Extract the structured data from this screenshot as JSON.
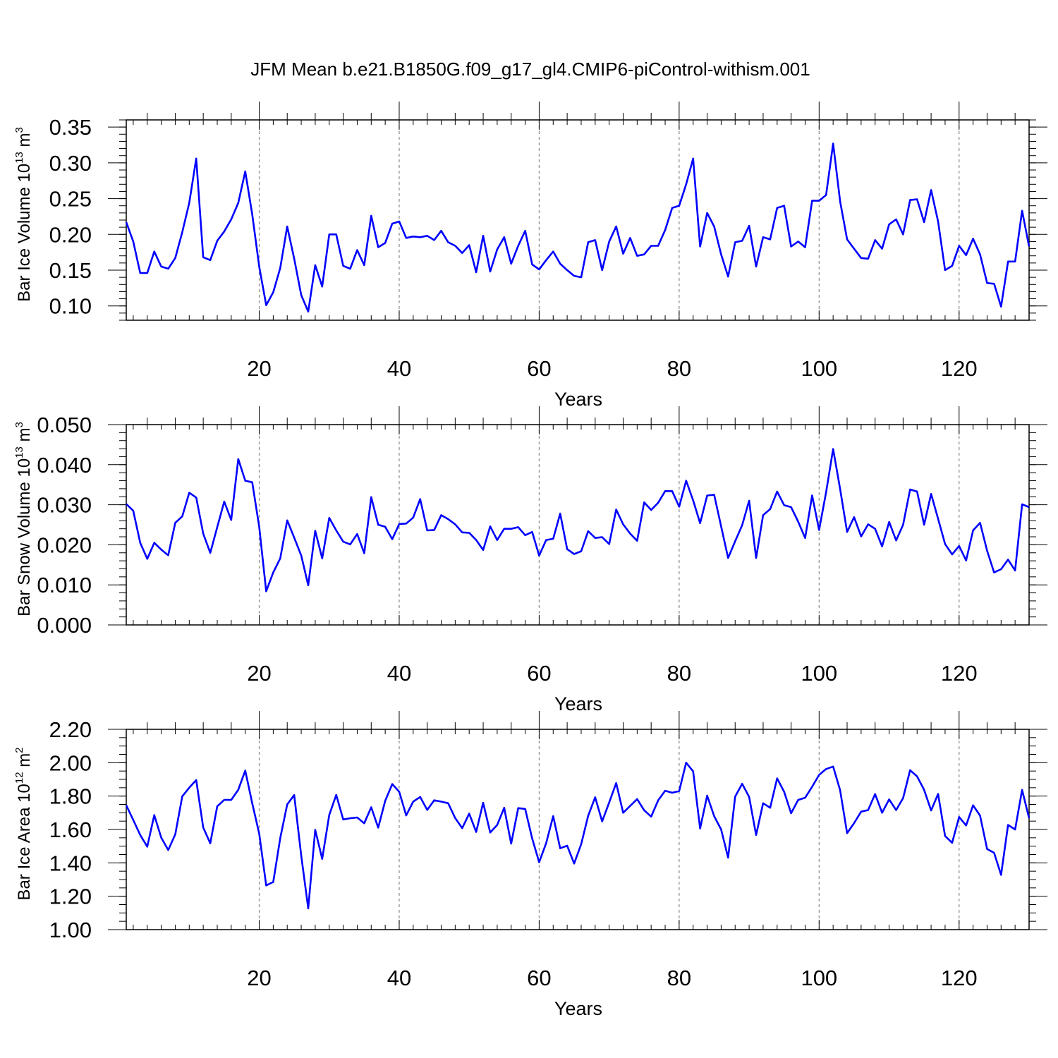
{
  "title": "JFM Mean b.e21.B1850G.f09_g17_gl4.CMIP6-piControl-withism.001",
  "line_color": "#0000ff",
  "chart_data": [
    {
      "type": "line",
      "xlabel": "Years",
      "ylabel": {
        "main": "Bar Ice Volume 10",
        "exp": "13",
        "unit": " m",
        "unit_exp": "3"
      },
      "xlim": [
        1,
        130
      ],
      "ylim": [
        0.08,
        0.36
      ],
      "x_ticks": [
        20,
        40,
        60,
        80,
        100,
        120
      ],
      "x_tick_labels": [
        "20",
        "40",
        "60",
        "80",
        "100",
        "120"
      ],
      "y_ticks": [
        0.1,
        0.15,
        0.2,
        0.25,
        0.3,
        0.35
      ],
      "y_tick_labels": [
        "0.10",
        "0.15",
        "0.20",
        "0.25",
        "0.30",
        "0.35"
      ],
      "y_minor_step": 0.01,
      "x_grid": "dashed vertical lines at major x ticks",
      "values": [
        0.217,
        0.19,
        0.146,
        0.146,
        0.176,
        0.155,
        0.152,
        0.167,
        0.203,
        0.244,
        0.306,
        0.168,
        0.164,
        0.191,
        0.204,
        0.221,
        0.244,
        0.288,
        0.228,
        0.155,
        0.101,
        0.119,
        0.153,
        0.211,
        0.166,
        0.115,
        0.092,
        0.157,
        0.127,
        0.2,
        0.2,
        0.156,
        0.152,
        0.178,
        0.157,
        0.226,
        0.182,
        0.188,
        0.215,
        0.218,
        0.195,
        0.197,
        0.196,
        0.198,
        0.192,
        0.205,
        0.189,
        0.184,
        0.174,
        0.185,
        0.147,
        0.198,
        0.148,
        0.179,
        0.196,
        0.159,
        0.184,
        0.205,
        0.158,
        0.151,
        0.164,
        0.176,
        0.159,
        0.15,
        0.142,
        0.14,
        0.189,
        0.192,
        0.15,
        0.19,
        0.211,
        0.173,
        0.195,
        0.17,
        0.172,
        0.184,
        0.184,
        0.206,
        0.237,
        0.24,
        0.27,
        0.306,
        0.183,
        0.23,
        0.211,
        0.172,
        0.141,
        0.189,
        0.191,
        0.212,
        0.155,
        0.196,
        0.193,
        0.237,
        0.24,
        0.183,
        0.19,
        0.182,
        0.247,
        0.247,
        0.255,
        0.327,
        0.246,
        0.193,
        0.18,
        0.167,
        0.166,
        0.192,
        0.18,
        0.214,
        0.221,
        0.2,
        0.248,
        0.249,
        0.217,
        0.262,
        0.218,
        0.15,
        0.156,
        0.184,
        0.171,
        0.194,
        0.172,
        0.132,
        0.131,
        0.099,
        0.162,
        0.162,
        0.233,
        0.183
      ]
    },
    {
      "type": "line",
      "xlabel": "Years",
      "ylabel": {
        "main": "Bar Snow Volume 10",
        "exp": "13",
        "unit": " m",
        "unit_exp": "3"
      },
      "xlim": [
        1,
        130
      ],
      "ylim": [
        0.0,
        0.05
      ],
      "x_ticks": [
        20,
        40,
        60,
        80,
        100,
        120
      ],
      "x_tick_labels": [
        "20",
        "40",
        "60",
        "80",
        "100",
        "120"
      ],
      "y_ticks": [
        0.0,
        0.01,
        0.02,
        0.03,
        0.04,
        0.05
      ],
      "y_tick_labels": [
        "0.000",
        "0.010",
        "0.020",
        "0.030",
        "0.040",
        "0.050"
      ],
      "y_minor_step": 0.002,
      "x_grid": "dashed vertical lines at major x ticks",
      "values": [
        0.0302,
        0.0285,
        0.0205,
        0.0165,
        0.0205,
        0.0188,
        0.0174,
        0.0255,
        0.0271,
        0.033,
        0.0318,
        0.0228,
        0.018,
        0.0244,
        0.0308,
        0.0262,
        0.0414,
        0.036,
        0.0356,
        0.0245,
        0.0084,
        0.0131,
        0.0166,
        0.0261,
        0.0218,
        0.0173,
        0.0099,
        0.0235,
        0.0166,
        0.0267,
        0.0236,
        0.0208,
        0.0201,
        0.0227,
        0.0179,
        0.0319,
        0.025,
        0.0245,
        0.0214,
        0.0252,
        0.0253,
        0.0268,
        0.0314,
        0.0236,
        0.0237,
        0.0274,
        0.0264,
        0.0251,
        0.0231,
        0.023,
        0.0212,
        0.0187,
        0.0246,
        0.0212,
        0.024,
        0.024,
        0.0244,
        0.0224,
        0.0232,
        0.0173,
        0.0212,
        0.0215,
        0.0278,
        0.0189,
        0.0177,
        0.0184,
        0.0234,
        0.0217,
        0.0219,
        0.0202,
        0.0288,
        0.0251,
        0.0228,
        0.021,
        0.0306,
        0.0287,
        0.0305,
        0.0334,
        0.0334,
        0.0295,
        0.036,
        0.0311,
        0.0254,
        0.0323,
        0.0325,
        0.0246,
        0.0167,
        0.0209,
        0.0249,
        0.031,
        0.0167,
        0.0274,
        0.0289,
        0.0333,
        0.0299,
        0.0294,
        0.0258,
        0.0217,
        0.0323,
        0.0237,
        0.0331,
        0.0439,
        0.0339,
        0.0232,
        0.0269,
        0.0221,
        0.0251,
        0.024,
        0.0196,
        0.0257,
        0.0211,
        0.025,
        0.0338,
        0.0333,
        0.025,
        0.0327,
        0.0265,
        0.0202,
        0.0176,
        0.0197,
        0.0161,
        0.0236,
        0.0255,
        0.0185,
        0.0131,
        0.0139,
        0.0163,
        0.0136,
        0.0301,
        0.0294
      ]
    },
    {
      "type": "line",
      "xlabel": "Years",
      "ylabel": {
        "main": "Bar Ice Area 10",
        "exp": "12",
        "unit": " m",
        "unit_exp": "2"
      },
      "xlim": [
        1,
        130
      ],
      "ylim": [
        1.0,
        2.2
      ],
      "x_ticks": [
        20,
        40,
        60,
        80,
        100,
        120
      ],
      "x_tick_labels": [
        "20",
        "40",
        "60",
        "80",
        "100",
        "120"
      ],
      "y_ticks": [
        1.0,
        1.2,
        1.4,
        1.6,
        1.8,
        2.0,
        2.2
      ],
      "y_tick_labels": [
        "1.00",
        "1.20",
        "1.40",
        "1.60",
        "1.80",
        "2.00",
        "2.20"
      ],
      "y_minor_step": 0.05,
      "x_grid": "dashed vertical lines at major x ticks",
      "values": [
        1.745,
        1.657,
        1.567,
        1.497,
        1.686,
        1.551,
        1.477,
        1.571,
        1.798,
        1.85,
        1.896,
        1.612,
        1.517,
        1.739,
        1.777,
        1.777,
        1.838,
        1.953,
        1.757,
        1.575,
        1.265,
        1.285,
        1.548,
        1.75,
        1.806,
        1.442,
        1.127,
        1.598,
        1.424,
        1.687,
        1.807,
        1.66,
        1.667,
        1.672,
        1.637,
        1.733,
        1.611,
        1.771,
        1.872,
        1.826,
        1.684,
        1.767,
        1.795,
        1.717,
        1.775,
        1.767,
        1.757,
        1.668,
        1.608,
        1.695,
        1.585,
        1.76,
        1.582,
        1.627,
        1.73,
        1.515,
        1.728,
        1.723,
        1.546,
        1.404,
        1.518,
        1.68,
        1.487,
        1.503,
        1.396,
        1.512,
        1.682,
        1.793,
        1.648,
        1.762,
        1.878,
        1.7,
        1.741,
        1.782,
        1.715,
        1.677,
        1.774,
        1.832,
        1.82,
        1.83,
        2.0,
        1.948,
        1.606,
        1.803,
        1.68,
        1.6,
        1.431,
        1.797,
        1.874,
        1.795,
        1.567,
        1.757,
        1.73,
        1.906,
        1.826,
        1.697,
        1.777,
        1.79,
        1.856,
        1.927,
        1.962,
        1.977,
        1.835,
        1.578,
        1.638,
        1.707,
        1.716,
        1.812,
        1.7,
        1.78,
        1.716,
        1.788,
        1.955,
        1.918,
        1.837,
        1.714,
        1.813,
        1.561,
        1.52,
        1.675,
        1.624,
        1.745,
        1.683,
        1.483,
        1.46,
        1.328,
        1.627,
        1.6,
        1.837,
        1.667
      ]
    }
  ]
}
